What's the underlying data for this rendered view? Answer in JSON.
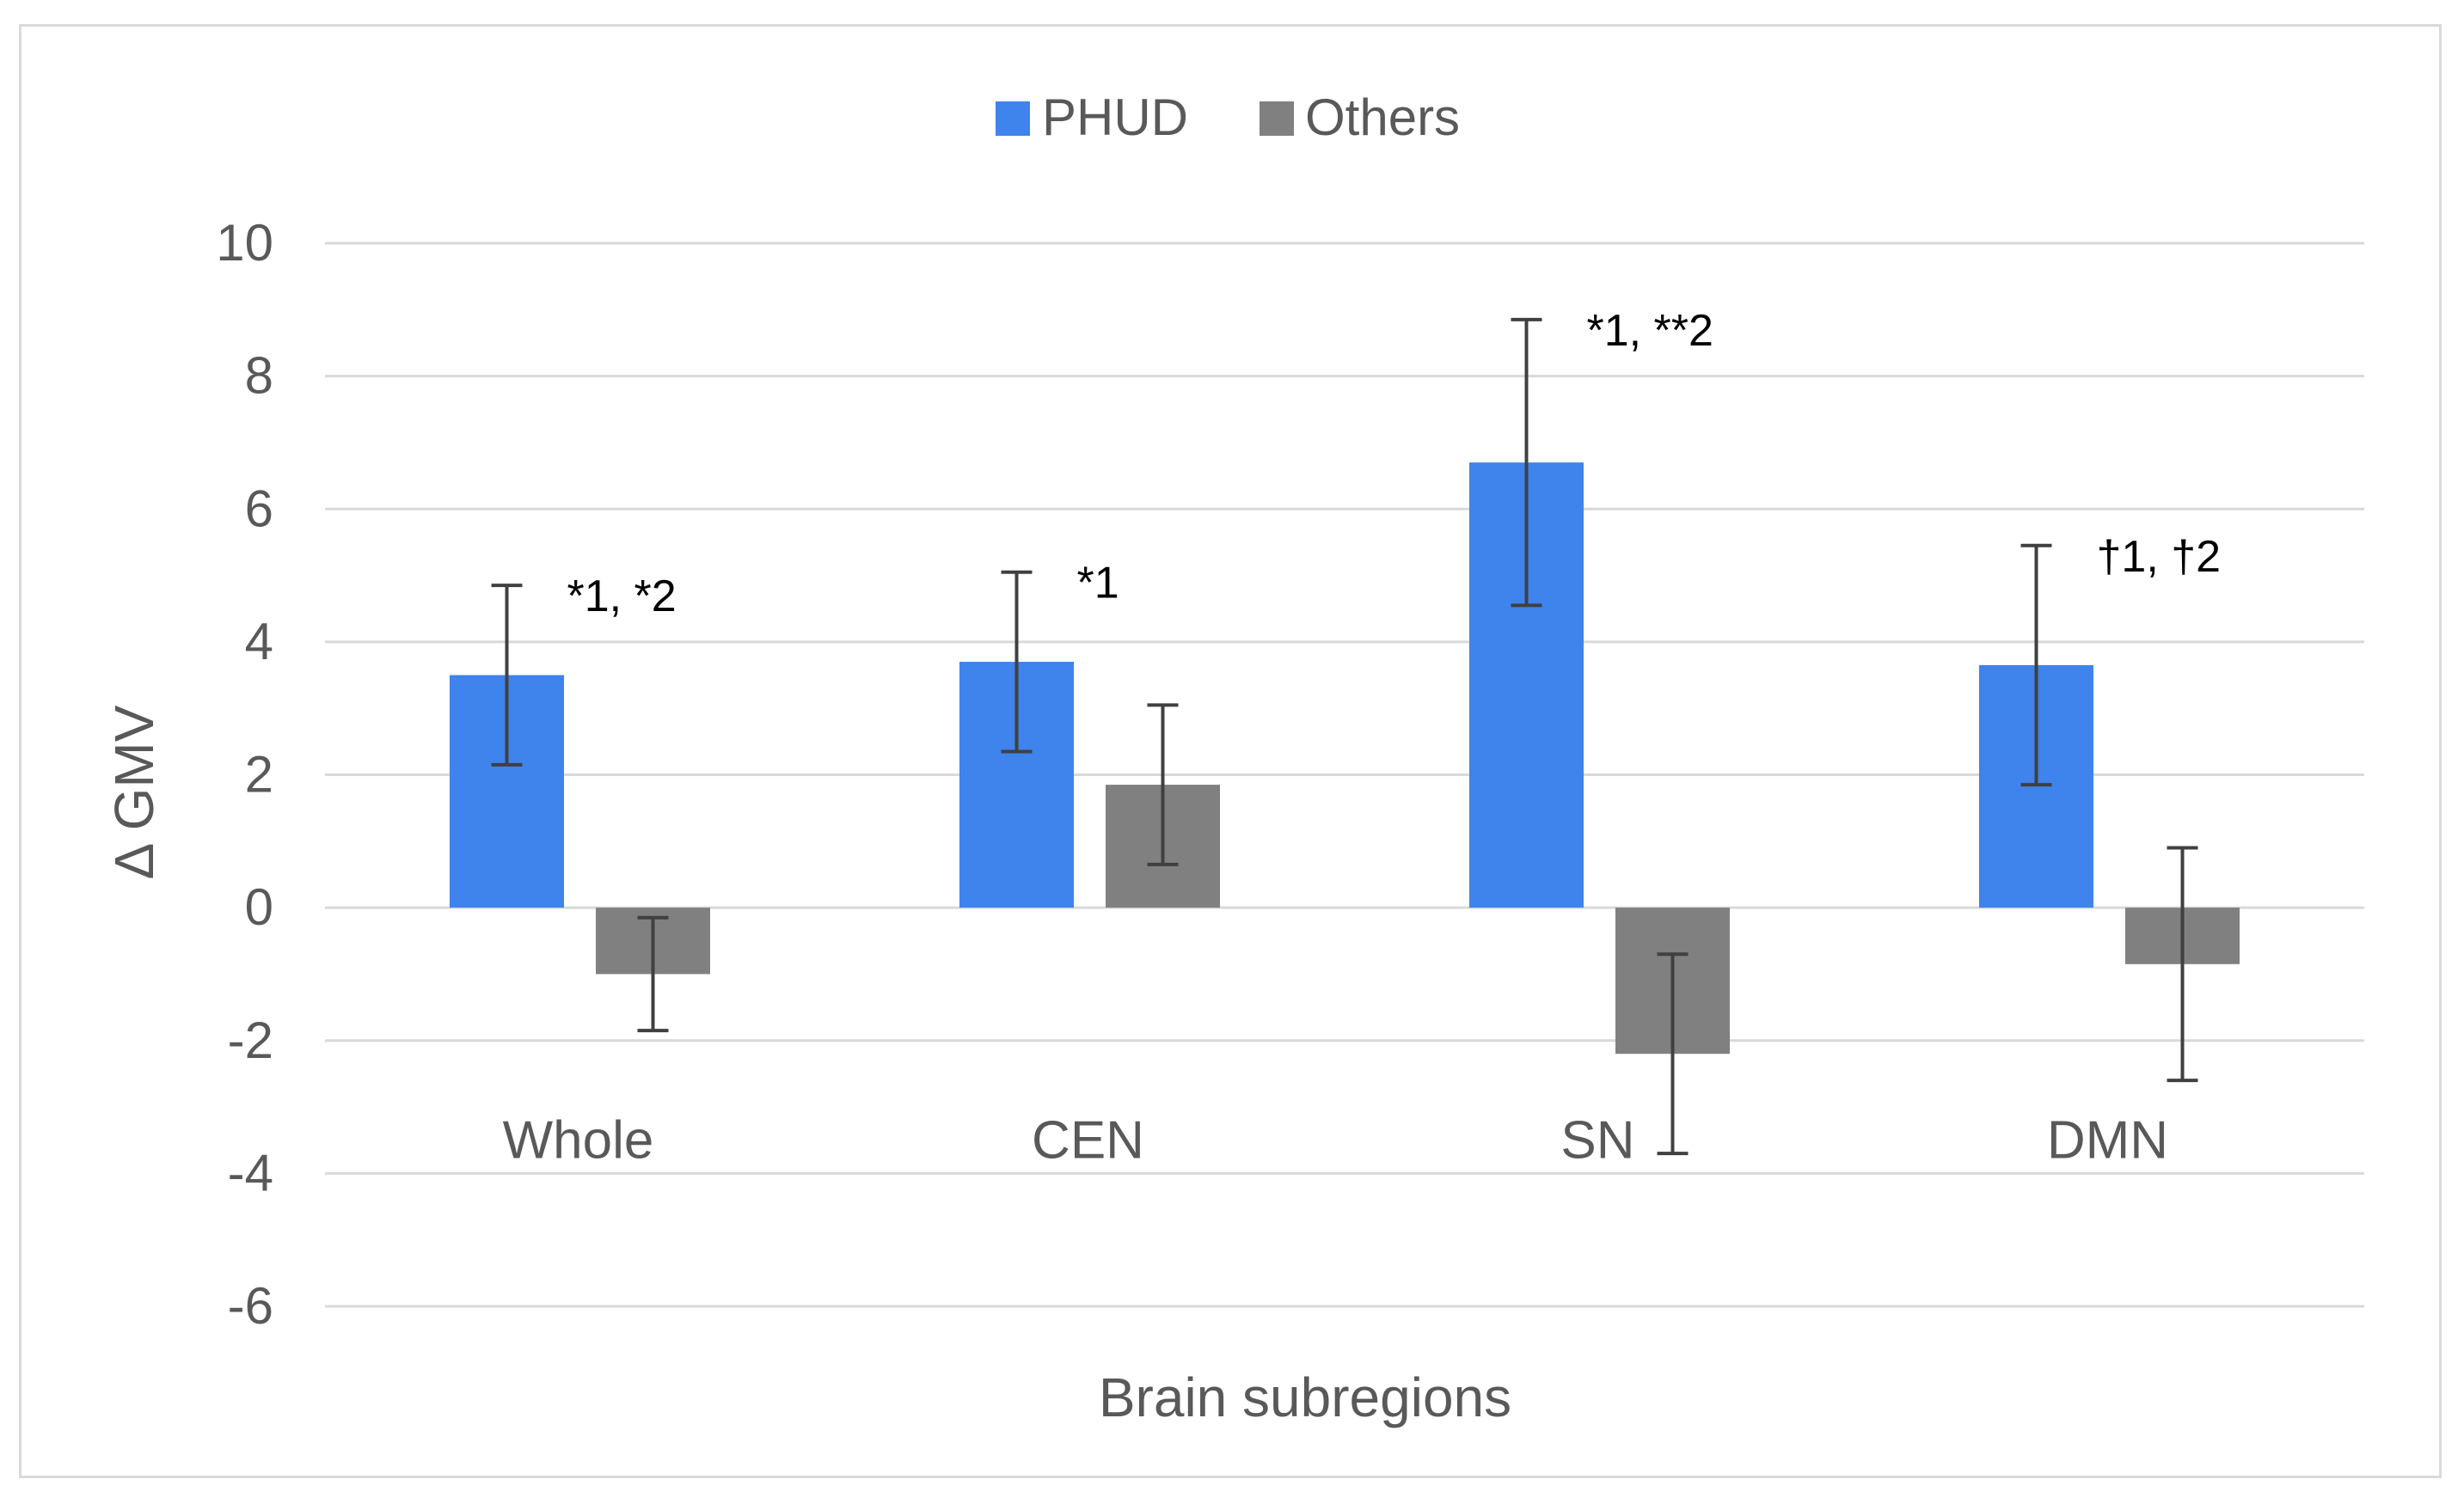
{
  "chart_data": {
    "type": "bar",
    "title": "",
    "xlabel": "Brain subregions",
    "ylabel": "Δ GMV",
    "ylim": [
      -6,
      10
    ],
    "y_ticks": [
      "10",
      "8",
      "6",
      "4",
      "2",
      "0",
      "-2",
      "-4",
      "-6"
    ],
    "grid": true,
    "legend_position": "top-center",
    "categories": [
      "Whole",
      "CEN",
      "SN",
      "DMN"
    ],
    "series": [
      {
        "name": "PHUD",
        "color": "#3f83ec",
        "values": [
          3.5,
          3.7,
          6.7,
          3.65
        ],
        "error": [
          1.35,
          1.35,
          2.15,
          1.8
        ]
      },
      {
        "name": "Others",
        "color": "#808080",
        "values": [
          -1.0,
          1.85,
          -2.2,
          -0.85
        ],
        "error": [
          0.85,
          1.2,
          1.5,
          1.75
        ]
      }
    ],
    "annotations": [
      "*1, *2",
      "*1",
      "*1, **2",
      "†1, †2"
    ]
  }
}
